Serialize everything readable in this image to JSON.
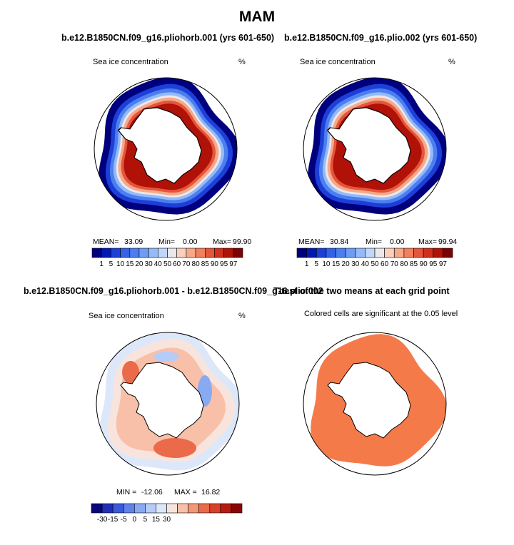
{
  "main_title": "MAM",
  "chart_data": [
    {
      "type": "heatmap",
      "projection": "south-polar-stereographic",
      "title": "b.e12.B1850CN.f09_g16.pliohorb.001 (yrs 601-650)",
      "subtitle_left": "Sea ice concentration",
      "subtitle_right": "%",
      "stats": {
        "mean_label": "MEAN=",
        "mean": "33.09",
        "min_label": "Min=",
        "min": "0.00",
        "max_label": "Max=",
        "max": "99.90"
      },
      "colorbar": {
        "levels": [
          "1",
          "5",
          "10",
          "15",
          "20",
          "30",
          "40",
          "50",
          "60",
          "70",
          "80",
          "85",
          "90",
          "95",
          "97"
        ],
        "colors": [
          "#00007f",
          "#0018b4",
          "#1c3fd8",
          "#3461e8",
          "#4c7ef0",
          "#6e9cf4",
          "#94baf8",
          "#c0d6fa",
          "#ece8ea",
          "#fad0bc",
          "#f6a88a",
          "#f0805e",
          "#e5553a",
          "#d02f1c",
          "#b01208",
          "#7a0404"
        ]
      }
    },
    {
      "type": "heatmap",
      "projection": "south-polar-stereographic",
      "title": "b.e12.B1850CN.f09_g16.plio.002 (yrs 601-650)",
      "subtitle_left": "Sea ice concentration",
      "subtitle_right": "%",
      "stats": {
        "mean_label": "MEAN=",
        "mean": "30.84",
        "min_label": "Min=",
        "min": "0.00",
        "max_label": "Max=",
        "max": "99.94"
      },
      "colorbar": {
        "levels": [
          "1",
          "5",
          "10",
          "15",
          "20",
          "30",
          "40",
          "50",
          "60",
          "70",
          "80",
          "85",
          "90",
          "95",
          "97"
        ],
        "colors": [
          "#00007f",
          "#0018b4",
          "#1c3fd8",
          "#3461e8",
          "#4c7ef0",
          "#6e9cf4",
          "#94baf8",
          "#c0d6fa",
          "#ece8ea",
          "#fad0bc",
          "#f6a88a",
          "#f0805e",
          "#e5553a",
          "#d02f1c",
          "#b01208",
          "#7a0404"
        ]
      }
    },
    {
      "type": "heatmap",
      "projection": "south-polar-stereographic",
      "title": "b.e12.B1850CN.f09_g16.pliohorb.001 - b.e12.B1850CN.f09_g16.plio.002",
      "subtitle_left": "Sea ice concentration",
      "subtitle_right": "%",
      "stats": {
        "min_label": "MIN =",
        "min": "-12.06",
        "max_label": "MAX =",
        "max": "16.82"
      },
      "colorbar": {
        "levels": [
          "-30",
          "-15",
          "-5",
          "0",
          "5",
          "15",
          "30"
        ],
        "colors": [
          "#08087a",
          "#1f2fb8",
          "#3a5ad8",
          "#5d82ea",
          "#88aaf2",
          "#b6ccf8",
          "#dce8fa",
          "#f8e4dc",
          "#f8c0a8",
          "#f49678",
          "#ea6a4a",
          "#d8402a",
          "#b81a10",
          "#8a0606"
        ]
      }
    },
    {
      "type": "heatmap",
      "projection": "south-polar-stereographic",
      "title": "T-test of the two means at each grid point",
      "subtitle_center": "Colored cells are significant at the 0.05 level",
      "fill_color": "#f57a4a"
    }
  ]
}
